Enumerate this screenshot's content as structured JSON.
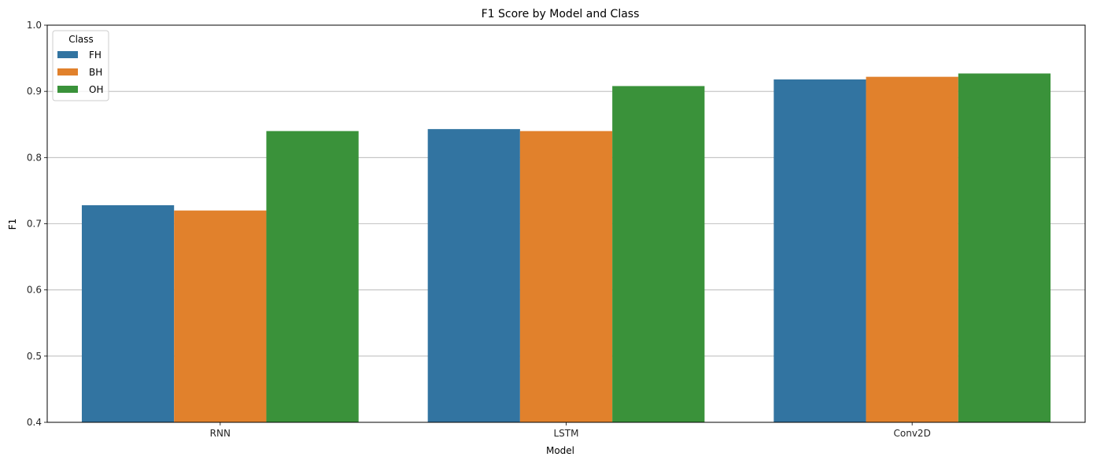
{
  "chart_data": {
    "type": "bar",
    "title": "F1 Score by Model and Class",
    "xlabel": "Model",
    "ylabel": "F1",
    "categories": [
      "RNN",
      "LSTM",
      "Conv2D"
    ],
    "ylim": [
      0.4,
      1.0
    ],
    "yticks": [
      "0.4",
      "0.5",
      "0.6",
      "0.7",
      "0.8",
      "0.9",
      "1.0"
    ],
    "grid": "y",
    "legend": {
      "title": "Class",
      "placement": "top-left"
    },
    "series": [
      {
        "name": "FH",
        "color": "#3274a1",
        "values": [
          0.728,
          0.843,
          0.918
        ]
      },
      {
        "name": "BH",
        "color": "#e1812c",
        "values": [
          0.72,
          0.84,
          0.922
        ]
      },
      {
        "name": "OH",
        "color": "#3a923a",
        "values": [
          0.84,
          0.908,
          0.927
        ]
      }
    ]
  }
}
